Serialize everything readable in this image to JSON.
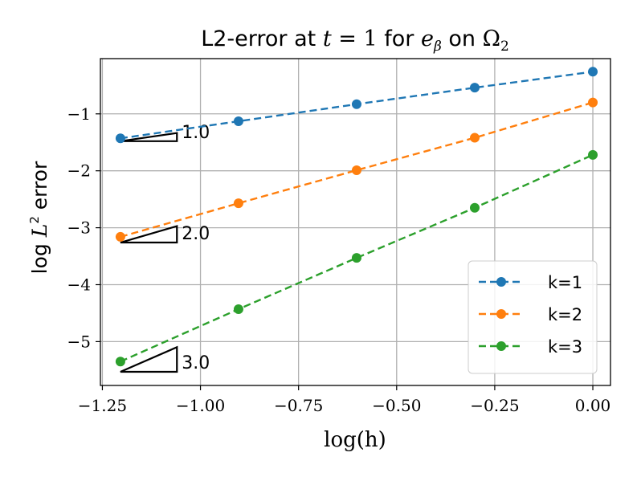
{
  "chart_data": {
    "type": "line",
    "title": {
      "prefix": "L2-error at ",
      "t_var": "t",
      "eq": " = 1",
      "mid": " for ",
      "e": "e",
      "beta": "β",
      "on": " on ",
      "omega": "Ω",
      "omega_sub": "2"
    },
    "xlabel": "log(h)",
    "ylabel": {
      "pre": "log ",
      "L": "L",
      "sup": "2",
      "post": " error"
    },
    "xlim": [
      -1.255,
      0.045
    ],
    "ylim": [
      -5.77,
      -0.03
    ],
    "xticks": [
      -1.25,
      -1.0,
      -0.75,
      -0.5,
      -0.25,
      0.0
    ],
    "xtick_labels": [
      "−1.25",
      "−1.00",
      "−0.75",
      "−0.50",
      "−0.25",
      "0.00"
    ],
    "yticks": [
      -1,
      -2,
      -3,
      -4,
      -5
    ],
    "ytick_labels": [
      "−1",
      "−2",
      "−3",
      "−4",
      "−5"
    ],
    "grid": true,
    "legend_position": "lower-right",
    "x": [
      -1.204,
      -0.903,
      -0.602,
      -0.301,
      0.0
    ],
    "series": [
      {
        "name": "k=1",
        "color": "#1f77b4",
        "values": [
          -1.43,
          -1.13,
          -0.83,
          -0.54,
          -0.26
        ]
      },
      {
        "name": "k=2",
        "color": "#ff7f0e",
        "values": [
          -3.16,
          -2.57,
          -1.99,
          -1.42,
          -0.8
        ]
      },
      {
        "name": "k=3",
        "color": "#2ca02c",
        "values": [
          -5.35,
          -4.43,
          -3.53,
          -2.65,
          -1.72
        ]
      }
    ],
    "slope_triangles": [
      {
        "label": "1.0",
        "x0": -1.204,
        "x1": -1.06,
        "y0": -1.48,
        "rise": 0.144
      },
      {
        "label": "2.0",
        "x0": -1.204,
        "x1": -1.06,
        "y0": -3.26,
        "rise": 0.288
      },
      {
        "label": "3.0",
        "x0": -1.204,
        "x1": -1.06,
        "y0": -5.53,
        "rise": 0.432
      }
    ]
  }
}
